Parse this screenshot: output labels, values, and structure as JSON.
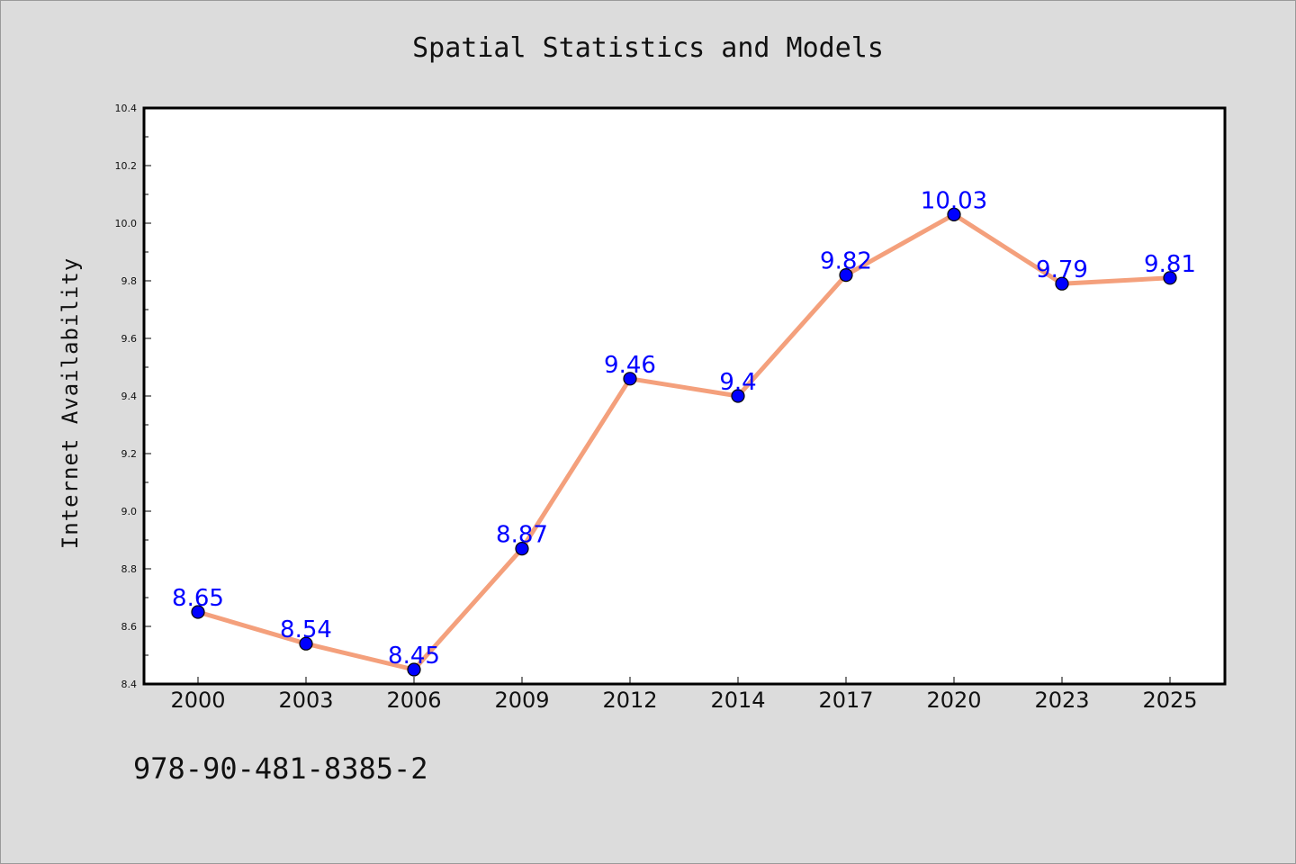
{
  "footer_text": "978-90-481-8385-2",
  "colors": {
    "background": "#dcdcdc",
    "plot_background": "#ffffff",
    "line": "#f4a07c",
    "marker": "#0000ff",
    "data_label": "#0000ff"
  },
  "chart_data": {
    "type": "line",
    "title": "Spatial Statistics and Models",
    "xlabel": "",
    "ylabel": "Internet Availability",
    "categories": [
      "2000",
      "2003",
      "2006",
      "2009",
      "2012",
      "2014",
      "2017",
      "2020",
      "2023",
      "2025"
    ],
    "values": [
      8.65,
      8.54,
      8.45,
      8.87,
      9.46,
      9.4,
      9.82,
      10.03,
      9.79,
      9.81
    ],
    "data_labels": [
      "8.65",
      "8.54",
      "8.45",
      "8.87",
      "9.46",
      "9.4",
      "9.82",
      "10.03",
      "9.79",
      "9.81"
    ],
    "ylim": [
      8.4,
      10.4
    ],
    "yticks": [
      "8.4",
      "8.6",
      "8.8",
      "9.0",
      "9.2",
      "9.4",
      "9.6",
      "9.8",
      "10.0",
      "10.2",
      "10.4"
    ],
    "grid": false,
    "legend": "none"
  }
}
